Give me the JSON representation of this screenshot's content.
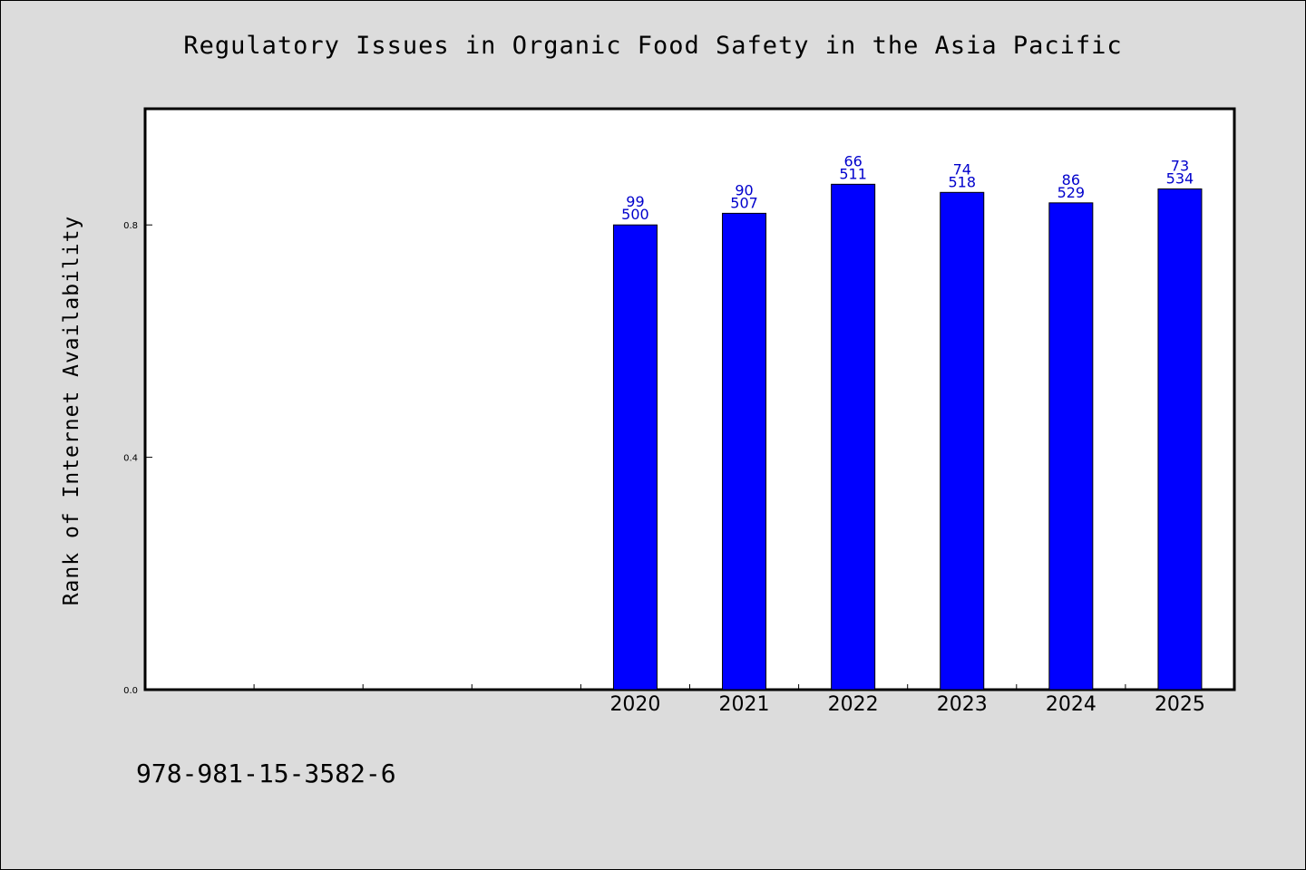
{
  "header": {
    "title": "Regulatory Issues in Organic Food Safety in the Asia Pacific"
  },
  "footer": {
    "isbn": "978-981-15-3582-6"
  },
  "chart_data": {
    "type": "bar",
    "title": "Regulatory Issues in Organic Food Safety in the Asia Pacific",
    "xlabel": "",
    "ylabel": "Rank of Internet Availability",
    "categories": [
      "",
      "",
      "",
      "",
      "2020",
      "2021",
      "2022",
      "2023",
      "2024",
      "2025"
    ],
    "values": [
      null,
      null,
      null,
      null,
      0.8,
      0.82,
      0.87,
      0.856,
      0.838,
      0.862
    ],
    "data_labels": [
      {
        "top": "99",
        "bottom": "500"
      },
      {
        "top": "90",
        "bottom": "507"
      },
      {
        "top": "66",
        "bottom": "511"
      },
      {
        "top": "74",
        "bottom": "518"
      },
      {
        "top": "86",
        "bottom": "529"
      },
      {
        "top": "73",
        "bottom": "534"
      }
    ],
    "ylim": [
      0,
      1.0
    ],
    "yticks": [
      0.0,
      0.4,
      0.8
    ],
    "ytick_labels": [
      "0.0",
      "0.4",
      "0.8"
    ],
    "bar_color": "#0000ff",
    "label_color": "#0000cc",
    "grid": false,
    "legend": "none"
  }
}
